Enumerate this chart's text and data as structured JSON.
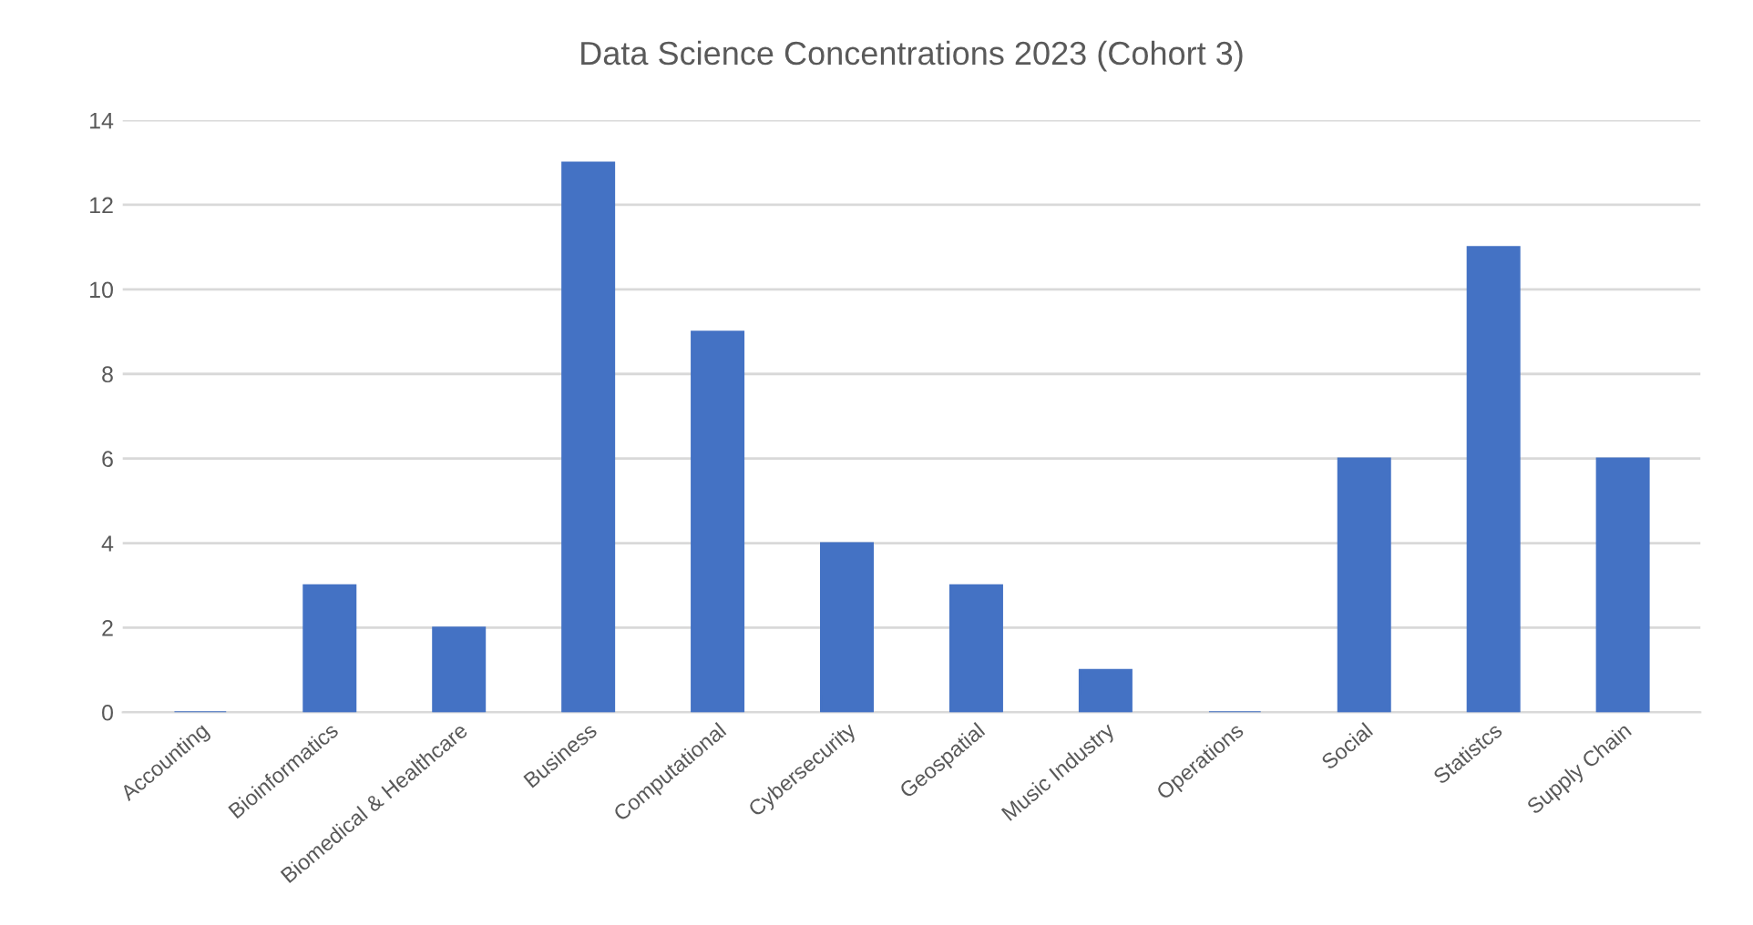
{
  "chart_data": {
    "type": "bar",
    "title": "Data Science Concentrations 2023 (Cohort 3)",
    "categories": [
      "Accounting",
      "Bioinformatics",
      "Biomedical & Healthcare",
      "Business",
      "Computational",
      "Cybersecurity",
      "Geospatial",
      "Music Industry",
      "Operations",
      "Social",
      "Statistcs",
      "Supply Chain"
    ],
    "values": [
      0,
      3,
      2,
      13,
      9,
      4,
      3,
      1,
      0,
      6,
      11,
      6
    ],
    "color": "#4472c4",
    "ylim": [
      0,
      14
    ],
    "yticks": [
      0,
      2,
      4,
      6,
      8,
      10,
      12,
      14
    ],
    "grid": "y",
    "legend": false
  }
}
